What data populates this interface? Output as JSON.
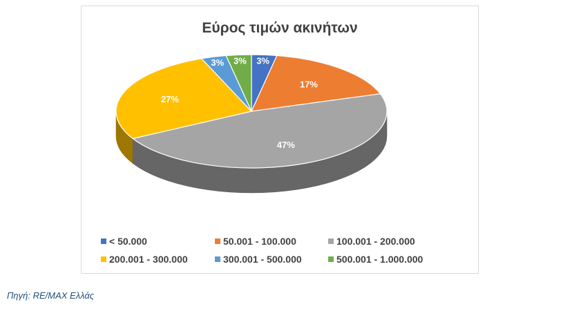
{
  "chart_data": {
    "type": "pie",
    "style": "3d",
    "title": "Εύρος τιμών ακινήτων",
    "categories": [
      "< 50.000",
      "50.001 - 100.000",
      "100.001 - 200.000",
      "200.001 - 300.000",
      "300.001 - 500.000",
      "500.001 - 1.000.000"
    ],
    "values": [
      3,
      17,
      47,
      27,
      3,
      3
    ],
    "data_labels": [
      "3%",
      "17%",
      "47%",
      "27%",
      "3%",
      "3%"
    ],
    "colors": [
      "#4472c4",
      "#ed7d31",
      "#a5a5a5",
      "#ffc000",
      "#5b9bd5",
      "#70ad47"
    ],
    "legend_position": "bottom"
  },
  "source_note": "Πηγή: RE/MAX Ελλάς"
}
